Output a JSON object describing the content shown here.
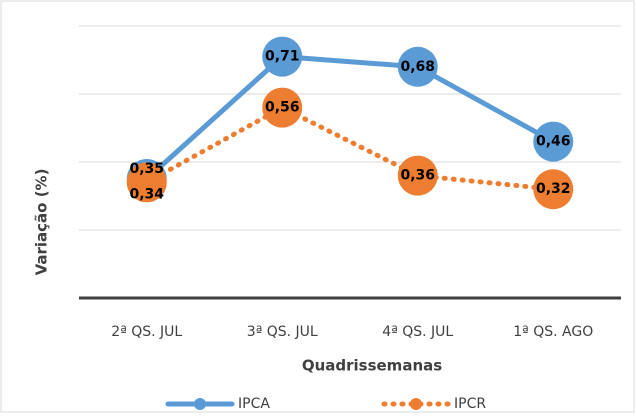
{
  "chart_data": {
    "type": "line",
    "x_label": "Quadrissemanas",
    "y_label": "Variação (%)",
    "categories": [
      "2ª QS. JUL",
      "3ª QS. JUL",
      "4ª QS. JUL",
      "1ª QS. AGO"
    ],
    "series": [
      {
        "name": "IPCA",
        "color": "#5b9bd5",
        "line_style": "solid",
        "values": [
          0.35,
          0.71,
          0.68,
          0.46
        ],
        "value_labels": [
          "0,35",
          "0,71",
          "0,68",
          "0,46"
        ]
      },
      {
        "name": "IPCR",
        "color": "#ed7d31",
        "line_style": "dotted",
        "values": [
          0.34,
          0.56,
          0.36,
          0.32
        ],
        "value_labels": [
          "0,34",
          "0,56",
          "0,36",
          "0,32"
        ]
      }
    ],
    "ylim": [
      0,
      0.8
    ],
    "yticks": [
      0,
      0.2,
      0.4,
      0.6,
      0.8
    ],
    "grid": true,
    "legend": "bottom"
  }
}
